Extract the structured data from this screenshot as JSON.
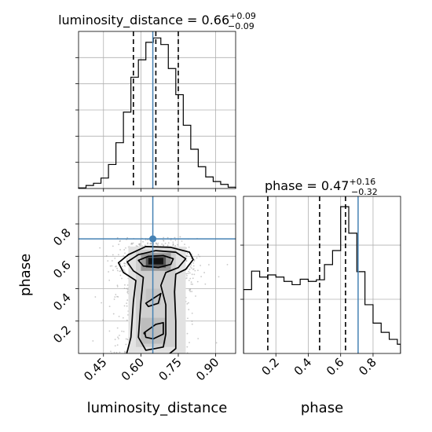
{
  "chart_data": [
    {
      "type": "histogram",
      "panel": "luminosity_distance marginal",
      "title_main": "luminosity_distance = 0.66",
      "title_sup": "+0.09",
      "title_sub": "−0.09",
      "xlim": [
        0.35,
        0.98
      ],
      "x_ticks": [
        0.45,
        0.6,
        0.75,
        0.9
      ],
      "bin_edges": [
        0.35,
        0.38,
        0.41,
        0.44,
        0.47,
        0.5,
        0.53,
        0.56,
        0.59,
        0.62,
        0.65,
        0.68,
        0.71,
        0.74,
        0.77,
        0.8,
        0.83,
        0.86,
        0.89,
        0.92,
        0.95,
        0.98
      ],
      "counts": [
        0.3,
        1.4,
        2.4,
        4.8,
        11,
        21,
        35,
        51,
        59,
        67,
        69,
        66,
        55,
        43,
        29,
        18,
        10,
        5.3,
        3.2,
        1.9,
        0.6
      ],
      "ylim": [
        0,
        72
      ],
      "quantile_lines": [
        0.57,
        0.66,
        0.75
      ],
      "truth_value": 0.6479
    },
    {
      "type": "scatter",
      "panel": "2D posterior",
      "xlabel": "luminosity_distance",
      "ylabel": "phase",
      "xlim": [
        0.35,
        0.98
      ],
      "ylim": [
        0.0,
        0.97
      ],
      "x_ticks": [
        0.45,
        0.6,
        0.75,
        0.9
      ],
      "x_tick_labels": [
        "0.45",
        "0.60",
        "0.75",
        "0.90"
      ],
      "y_ticks": [
        0.2,
        0.4,
        0.6,
        0.8
      ],
      "y_tick_labels": [
        "0.2",
        "0.4",
        "0.6",
        "0.8"
      ],
      "truth_point": [
        0.6479,
        0.7077
      ]
    },
    {
      "type": "histogram",
      "panel": "phase marginal",
      "title_main": "phase = 0.47",
      "title_sup": "+0.16",
      "title_sub": "−0.32",
      "xlabel": "phase",
      "xlim": [
        0.0,
        0.97
      ],
      "x_ticks": [
        0.2,
        0.4,
        0.6,
        0.8
      ],
      "x_tick_labels": [
        "0.2",
        "0.4",
        "0.6",
        "0.8"
      ],
      "bin_edges": [
        0.0,
        0.05,
        0.1,
        0.15,
        0.2,
        0.25,
        0.3,
        0.35,
        0.4,
        0.45,
        0.5,
        0.55,
        0.6,
        0.65,
        0.7,
        0.75,
        0.8,
        0.85,
        0.9,
        0.95,
        0.97
      ],
      "counts": [
        1.18,
        1.52,
        1.41,
        1.45,
        1.41,
        1.33,
        1.27,
        1.37,
        1.33,
        1.36,
        1.64,
        1.9,
        2.71,
        2.22,
        1.51,
        0.9,
        0.56,
        0.39,
        0.26,
        0.17
      ],
      "ylim": [
        0,
        2.9
      ],
      "quantile_lines": [
        0.15,
        0.47,
        0.63
      ],
      "truth_value": 0.7077
    }
  ]
}
